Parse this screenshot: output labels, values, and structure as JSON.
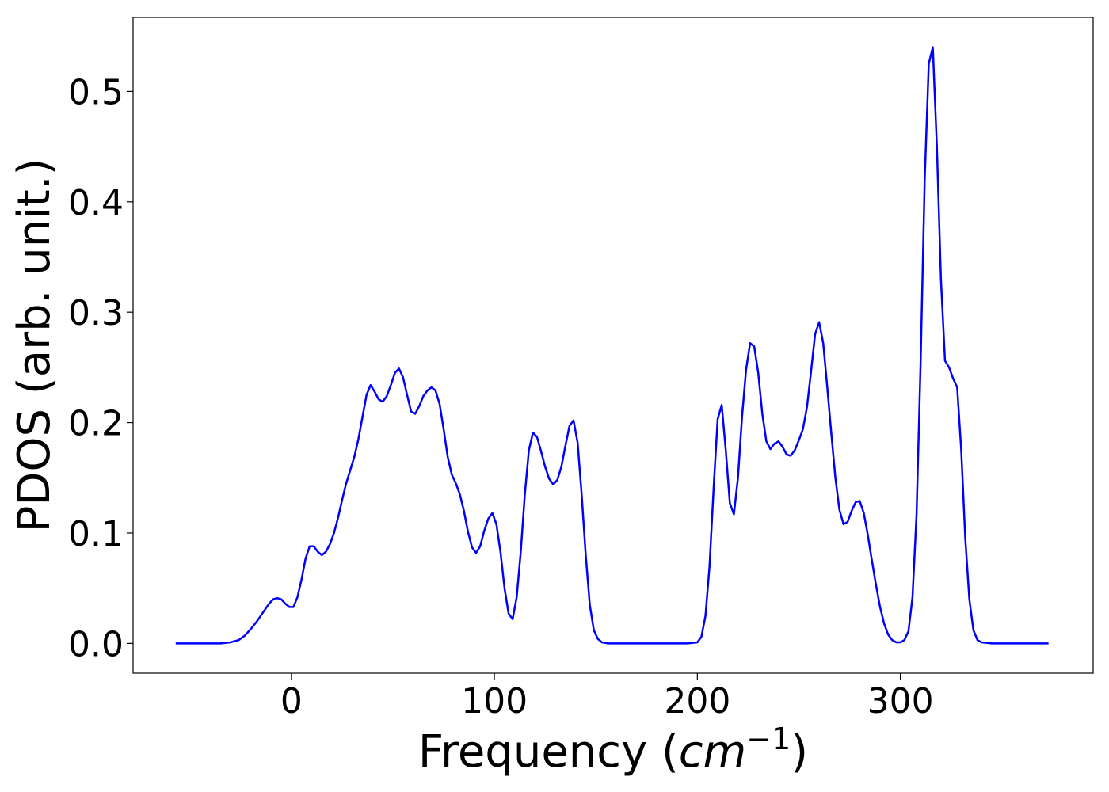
{
  "chart_data": {
    "type": "line",
    "title": "",
    "xlabel_prefix": "Frequency (",
    "xlabel_unit": "cm",
    "xlabel_exponent": "−1",
    "xlabel_suffix": ")",
    "ylabel": "PDOS (arb. unit.)",
    "xlim": [
      -78,
      395
    ],
    "ylim": [
      -0.027,
      0.567
    ],
    "xticks": [
      0,
      100,
      200,
      300
    ],
    "yticks": [
      0.0,
      0.1,
      0.2,
      0.3,
      0.4,
      0.5
    ],
    "xtick_labels": [
      "0",
      "100",
      "200",
      "300"
    ],
    "ytick_labels": [
      "0.0",
      "0.1",
      "0.2",
      "0.3",
      "0.4",
      "0.5"
    ],
    "grid": false,
    "legend": "none",
    "series": [
      {
        "color": "#0000ff",
        "points": [
          [
            -57,
            0.0
          ],
          [
            -45,
            0.0
          ],
          [
            -35,
            0.0
          ],
          [
            -30,
            0.001
          ],
          [
            -26,
            0.003
          ],
          [
            -23,
            0.007
          ],
          [
            -20,
            0.013
          ],
          [
            -17,
            0.02
          ],
          [
            -14,
            0.028
          ],
          [
            -11,
            0.036
          ],
          [
            -9,
            0.04
          ],
          [
            -7,
            0.041
          ],
          [
            -5,
            0.04
          ],
          [
            -3,
            0.036
          ],
          [
            -1,
            0.033
          ],
          [
            1,
            0.033
          ],
          [
            3,
            0.042
          ],
          [
            5,
            0.058
          ],
          [
            7,
            0.077
          ],
          [
            9,
            0.088
          ],
          [
            11,
            0.088
          ],
          [
            13,
            0.083
          ],
          [
            15,
            0.08
          ],
          [
            17,
            0.083
          ],
          [
            19,
            0.09
          ],
          [
            21,
            0.1
          ],
          [
            23,
            0.114
          ],
          [
            25,
            0.13
          ],
          [
            27,
            0.145
          ],
          [
            29,
            0.157
          ],
          [
            31,
            0.169
          ],
          [
            33,
            0.185
          ],
          [
            35,
            0.205
          ],
          [
            37,
            0.225
          ],
          [
            39,
            0.234
          ],
          [
            41,
            0.228
          ],
          [
            43,
            0.221
          ],
          [
            45,
            0.219
          ],
          [
            47,
            0.224
          ],
          [
            49,
            0.234
          ],
          [
            51,
            0.245
          ],
          [
            53,
            0.249
          ],
          [
            55,
            0.241
          ],
          [
            57,
            0.225
          ],
          [
            59,
            0.21
          ],
          [
            61,
            0.208
          ],
          [
            63,
            0.215
          ],
          [
            65,
            0.224
          ],
          [
            67,
            0.229
          ],
          [
            69,
            0.232
          ],
          [
            71,
            0.229
          ],
          [
            73,
            0.217
          ],
          [
            75,
            0.194
          ],
          [
            77,
            0.169
          ],
          [
            79,
            0.153
          ],
          [
            81,
            0.145
          ],
          [
            83,
            0.135
          ],
          [
            85,
            0.12
          ],
          [
            87,
            0.101
          ],
          [
            89,
            0.087
          ],
          [
            91,
            0.082
          ],
          [
            93,
            0.088
          ],
          [
            95,
            0.102
          ],
          [
            97,
            0.113
          ],
          [
            99,
            0.118
          ],
          [
            101,
            0.108
          ],
          [
            103,
            0.083
          ],
          [
            105,
            0.05
          ],
          [
            107,
            0.027
          ],
          [
            109,
            0.022
          ],
          [
            111,
            0.042
          ],
          [
            113,
            0.083
          ],
          [
            115,
            0.135
          ],
          [
            117,
            0.175
          ],
          [
            119,
            0.191
          ],
          [
            121,
            0.187
          ],
          [
            123,
            0.174
          ],
          [
            125,
            0.16
          ],
          [
            127,
            0.149
          ],
          [
            129,
            0.144
          ],
          [
            131,
            0.148
          ],
          [
            133,
            0.16
          ],
          [
            135,
            0.179
          ],
          [
            137,
            0.197
          ],
          [
            139,
            0.202
          ],
          [
            141,
            0.182
          ],
          [
            143,
            0.135
          ],
          [
            145,
            0.08
          ],
          [
            147,
            0.035
          ],
          [
            149,
            0.012
          ],
          [
            151,
            0.004
          ],
          [
            153,
            0.001
          ],
          [
            156,
            0.0
          ],
          [
            165,
            0.0
          ],
          [
            180,
            0.0
          ],
          [
            195,
            0.0
          ],
          [
            200,
            0.001
          ],
          [
            202,
            0.006
          ],
          [
            204,
            0.025
          ],
          [
            206,
            0.07
          ],
          [
            208,
            0.14
          ],
          [
            210,
            0.203
          ],
          [
            212,
            0.216
          ],
          [
            214,
            0.175
          ],
          [
            216,
            0.127
          ],
          [
            218,
            0.117
          ],
          [
            220,
            0.15
          ],
          [
            222,
            0.205
          ],
          [
            224,
            0.248
          ],
          [
            226,
            0.272
          ],
          [
            228,
            0.269
          ],
          [
            230,
            0.245
          ],
          [
            232,
            0.208
          ],
          [
            234,
            0.183
          ],
          [
            236,
            0.176
          ],
          [
            238,
            0.181
          ],
          [
            240,
            0.183
          ],
          [
            242,
            0.178
          ],
          [
            244,
            0.171
          ],
          [
            246,
            0.17
          ],
          [
            248,
            0.175
          ],
          [
            250,
            0.184
          ],
          [
            252,
            0.194
          ],
          [
            254,
            0.214
          ],
          [
            256,
            0.246
          ],
          [
            258,
            0.28
          ],
          [
            260,
            0.291
          ],
          [
            262,
            0.272
          ],
          [
            264,
            0.232
          ],
          [
            266,
            0.19
          ],
          [
            268,
            0.15
          ],
          [
            270,
            0.121
          ],
          [
            272,
            0.108
          ],
          [
            274,
            0.11
          ],
          [
            276,
            0.12
          ],
          [
            278,
            0.128
          ],
          [
            280,
            0.129
          ],
          [
            282,
            0.118
          ],
          [
            284,
            0.098
          ],
          [
            286,
            0.075
          ],
          [
            288,
            0.053
          ],
          [
            290,
            0.033
          ],
          [
            292,
            0.018
          ],
          [
            294,
            0.008
          ],
          [
            296,
            0.003
          ],
          [
            298,
            0.001
          ],
          [
            300,
            0.001
          ],
          [
            302,
            0.003
          ],
          [
            304,
            0.011
          ],
          [
            306,
            0.042
          ],
          [
            308,
            0.117
          ],
          [
            310,
            0.255
          ],
          [
            312,
            0.42
          ],
          [
            314,
            0.525
          ],
          [
            316,
            0.54
          ],
          [
            318,
            0.45
          ],
          [
            320,
            0.33
          ],
          [
            322,
            0.256
          ],
          [
            324,
            0.25
          ],
          [
            326,
            0.24
          ],
          [
            328,
            0.232
          ],
          [
            330,
            0.175
          ],
          [
            332,
            0.095
          ],
          [
            334,
            0.04
          ],
          [
            336,
            0.012
          ],
          [
            338,
            0.003
          ],
          [
            340,
            0.001
          ],
          [
            345,
            0.0
          ],
          [
            360,
            0.0
          ],
          [
            373,
            0.0
          ]
        ]
      }
    ]
  }
}
